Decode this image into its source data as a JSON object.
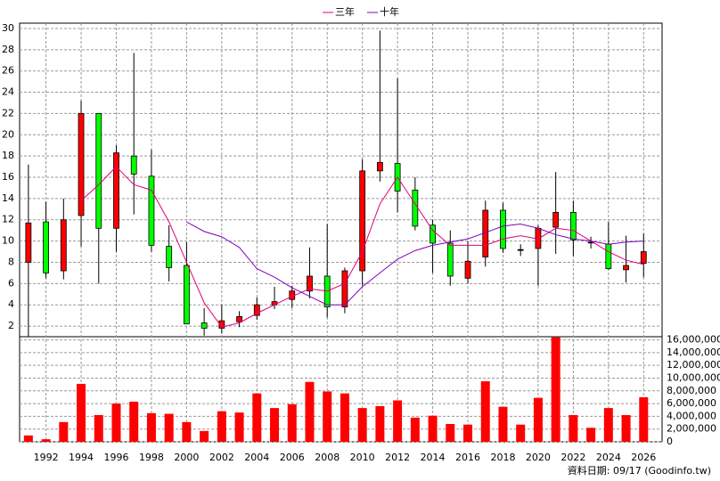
{
  "chart_data": [
    {
      "type": "candlestick",
      "x": [
        1991,
        1992,
        1993,
        1994,
        1995,
        1996,
        1997,
        1998,
        1999,
        2000,
        2001,
        2002,
        2003,
        2004,
        2005,
        2006,
        2007,
        2008,
        2009,
        2010,
        2011,
        2012,
        2013,
        2014,
        2015,
        2016,
        2017,
        2018,
        2019,
        2020,
        2021,
        2022,
        2023,
        2024,
        2025,
        2026
      ],
      "open": [
        8,
        11.8,
        7.2,
        12.4,
        22,
        11.2,
        18,
        16.1,
        9.5,
        7.7,
        2.3,
        1.8,
        2.4,
        3,
        4,
        4.5,
        5.3,
        6.7,
        3.8,
        7.2,
        16.6,
        17.3,
        14.8,
        11.5,
        9.8,
        6.5,
        8.5,
        12.9,
        9.2,
        9.3,
        11.3,
        12.7,
        9.9,
        9.7,
        7.3,
        7.9
      ],
      "high": [
        17.2,
        13.7,
        14,
        23.2,
        22,
        19,
        27.7,
        18.6,
        11.5,
        9.9,
        3.7,
        4,
        3.4,
        4.7,
        5.7,
        5.8,
        9.4,
        11.6,
        7.5,
        17.7,
        29.8,
        25.3,
        16,
        12,
        11,
        10,
        13.8,
        13.6,
        9.7,
        11.5,
        16.5,
        13.8,
        10.4,
        11.8,
        10.5,
        10.7
      ],
      "low": [
        1,
        6.5,
        6.4,
        9.5,
        6,
        9,
        12.5,
        9,
        6.2,
        2.2,
        1.1,
        1.3,
        1.9,
        2.6,
        3.6,
        3.7,
        4.6,
        2.8,
        3.2,
        5.8,
        15.6,
        12.7,
        11,
        7,
        5.8,
        6,
        7.6,
        8.9,
        8.6,
        5.8,
        8.8,
        8.6,
        9.3,
        7.3,
        6.1,
        6.6
      ],
      "close": [
        11.7,
        7,
        12,
        22,
        11.2,
        18.3,
        16.3,
        9.6,
        7.5,
        2.2,
        1.8,
        2.5,
        2.9,
        4,
        4.3,
        5.3,
        6.7,
        3.8,
        7.2,
        16.6,
        17.4,
        14.7,
        11.4,
        9.8,
        6.7,
        8.1,
        12.9,
        9.3,
        9.2,
        11.2,
        12.7,
        10.1,
        9.9,
        7.4,
        7.7,
        9
      ],
      "up_color": "#ff0000",
      "down_color": "#00ff00",
      "series": [
        {
          "name": "三年",
          "color": "#e0007a",
          "values": [
            null,
            null,
            null,
            13.8,
            15.3,
            17,
            15.3,
            14.8,
            11.8,
            8,
            4.2,
            1.9,
            2.3,
            3.2,
            4,
            4.8,
            5.5,
            5.3,
            6,
            9,
            13.5,
            16,
            13.5,
            11,
            9.6,
            9.6,
            9.6,
            10.2,
            10.5,
            10.2,
            11.2,
            11,
            10,
            9,
            8.2,
            7.8
          ]
        },
        {
          "name": "十年",
          "color": "#8000c0",
          "values": [
            null,
            null,
            null,
            null,
            null,
            null,
            null,
            null,
            null,
            11.8,
            10.9,
            10.4,
            9.4,
            7.4,
            6.6,
            5.6,
            4.8,
            4,
            4,
            5.7,
            7,
            8.3,
            9.1,
            9.6,
            9.9,
            10.2,
            10.8,
            11.4,
            11.6,
            11.2,
            10.6,
            10.2,
            10,
            9.7,
            9.9,
            10
          ]
        }
      ],
      "ylim": [
        1,
        30.5
      ],
      "yticks": [
        2,
        4,
        6,
        8,
        10,
        12,
        14,
        16,
        18,
        20,
        22,
        24,
        26,
        28,
        30
      ],
      "grid": true
    },
    {
      "type": "bar",
      "x": [
        1991,
        1992,
        1993,
        1994,
        1995,
        1996,
        1997,
        1998,
        1999,
        2000,
        2001,
        2002,
        2003,
        2004,
        2005,
        2006,
        2007,
        2008,
        2009,
        2010,
        2011,
        2012,
        2013,
        2014,
        2015,
        2016,
        2017,
        2018,
        2019,
        2020,
        2021,
        2022,
        2023,
        2024,
        2025,
        2026
      ],
      "values": [
        1000000,
        400000,
        3100000,
        9100000,
        4200000,
        6000000,
        6300000,
        4500000,
        4400000,
        3100000,
        1700000,
        4800000,
        4600000,
        7600000,
        5300000,
        5900000,
        9400000,
        7900000,
        7600000,
        5300000,
        5600000,
        6500000,
        3800000,
        4100000,
        2800000,
        2700000,
        9500000,
        5500000,
        2700000,
        6900000,
        16400000,
        4200000,
        2200000,
        5300000,
        4200000,
        7000000
      ],
      "color": "#ff0000",
      "ylim": [
        0,
        16500000
      ],
      "yticks": [
        {
          "value": 0,
          "label": "0"
        },
        {
          "value": 2000000,
          "label": "2,000,000"
        },
        {
          "value": 4000000,
          "label": "4,000,000"
        },
        {
          "value": 6000000,
          "label": "6,000,000"
        },
        {
          "value": 8000000,
          "label": "8,000,000"
        },
        {
          "value": 10000000,
          "label": "10,000,000"
        },
        {
          "value": 12000000,
          "label": "12,000,000"
        },
        {
          "value": 14000000,
          "label": "14,000,000"
        },
        {
          "value": 16000000,
          "label": "16,000,000"
        }
      ],
      "xticks": [
        1992,
        1994,
        1996,
        1998,
        2000,
        2002,
        2004,
        2006,
        2008,
        2010,
        2012,
        2014,
        2016,
        2018,
        2020,
        2022,
        2024,
        2026
      ],
      "xlim": [
        1990.5,
        2027.05
      ],
      "grid": true,
      "footer": "資料日期: 09/17  (Goodinfo.tw)"
    }
  ]
}
